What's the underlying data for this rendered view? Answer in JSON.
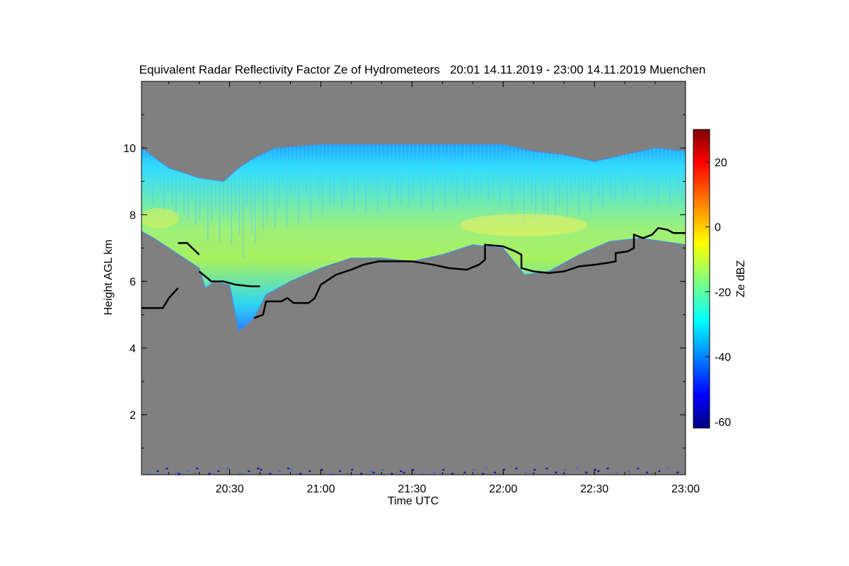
{
  "chart_data": {
    "type": "heatmap",
    "title": "Equivalent Radar Reflectivity Factor Ze of Hydrometeors   20:01 14.11.2019 - 23:00 14.11.2019 Muenchen",
    "xlabel": "Time UTC",
    "ylabel": "Height AGL km",
    "x_ticks": [
      "20:30",
      "21:00",
      "21:30",
      "22:00",
      "22:30",
      "23:00"
    ],
    "y_ticks": [
      "2",
      "4",
      "6",
      "8",
      "10"
    ],
    "xlim_minutes_after_2000": [
      1,
      180
    ],
    "ylim_km": [
      0.2,
      12.0
    ],
    "colorbar": {
      "label": "Ze dBZ",
      "ticks": [
        "20",
        "0",
        "-20",
        "-40",
        "-60"
      ],
      "range": [
        -62,
        30
      ],
      "colormap": "jet"
    },
    "background_color": "#808080",
    "cloud_top_km": [
      [
        1,
        10.0
      ],
      [
        10,
        9.4
      ],
      [
        20,
        9.1
      ],
      [
        28,
        9.0
      ],
      [
        33,
        9.4
      ],
      [
        38,
        9.7
      ],
      [
        45,
        10.0
      ],
      [
        60,
        10.1
      ],
      [
        80,
        10.1
      ],
      [
        100,
        10.1
      ],
      [
        110,
        10.1
      ],
      [
        120,
        10.1
      ],
      [
        130,
        9.9
      ],
      [
        140,
        9.8
      ],
      [
        150,
        9.6
      ],
      [
        160,
        9.8
      ],
      [
        170,
        10.0
      ],
      [
        180,
        9.9
      ]
    ],
    "cloud_base_km": [
      [
        1,
        7.5
      ],
      [
        5,
        7.3
      ],
      [
        10,
        7.0
      ],
      [
        15,
        6.7
      ],
      [
        20,
        6.4
      ],
      [
        22,
        5.8
      ],
      [
        25,
        6.0
      ],
      [
        30,
        5.9
      ],
      [
        33,
        4.5
      ],
      [
        38,
        4.9
      ],
      [
        42,
        5.6
      ],
      [
        50,
        6.0
      ],
      [
        60,
        6.4
      ],
      [
        70,
        6.7
      ],
      [
        80,
        6.7
      ],
      [
        90,
        6.6
      ],
      [
        100,
        6.8
      ],
      [
        110,
        7.1
      ],
      [
        120,
        7.0
      ],
      [
        127,
        6.2
      ],
      [
        135,
        6.3
      ],
      [
        145,
        6.8
      ],
      [
        155,
        7.2
      ],
      [
        165,
        7.3
      ],
      [
        180,
        7.1
      ]
    ],
    "high_reflectivity_core": {
      "height_km": 7.8,
      "ze_dbz": -10
    },
    "black_trace_km": [
      [
        1,
        5.2
      ],
      [
        8,
        5.2
      ],
      [
        10,
        5.5
      ],
      [
        13,
        5.8
      ],
      [
        13,
        7.15
      ],
      [
        16,
        7.15
      ],
      [
        20,
        6.8
      ],
      [
        20,
        6.3
      ],
      [
        24,
        6.0
      ],
      [
        28,
        6.0
      ],
      [
        32,
        5.9
      ],
      [
        37,
        5.85
      ],
      [
        40,
        5.85
      ],
      [
        38,
        4.9
      ],
      [
        41,
        5.0
      ],
      [
        42,
        5.4
      ],
      [
        47,
        5.4
      ],
      [
        49,
        5.5
      ],
      [
        51,
        5.35
      ],
      [
        56,
        5.35
      ],
      [
        58,
        5.5
      ],
      [
        60,
        5.9
      ],
      [
        65,
        6.2
      ],
      [
        70,
        6.35
      ],
      [
        74,
        6.5
      ],
      [
        79,
        6.6
      ],
      [
        90,
        6.6
      ],
      [
        97,
        6.5
      ],
      [
        102,
        6.4
      ],
      [
        108,
        6.35
      ],
      [
        112,
        6.5
      ],
      [
        114,
        6.65
      ],
      [
        114,
        7.1
      ],
      [
        120,
        7.05
      ],
      [
        124,
        6.9
      ],
      [
        126,
        6.8
      ],
      [
        126,
        6.4
      ],
      [
        130,
        6.3
      ],
      [
        135,
        6.25
      ],
      [
        140,
        6.3
      ],
      [
        145,
        6.45
      ],
      [
        150,
        6.5
      ],
      [
        154,
        6.55
      ],
      [
        157,
        6.6
      ],
      [
        157,
        6.85
      ],
      [
        161,
        6.9
      ],
      [
        163,
        7.0
      ],
      [
        163,
        7.4
      ],
      [
        166,
        7.3
      ],
      [
        169,
        7.4
      ],
      [
        171,
        7.6
      ],
      [
        174,
        7.55
      ],
      [
        176,
        7.45
      ],
      [
        180,
        7.45
      ]
    ]
  }
}
